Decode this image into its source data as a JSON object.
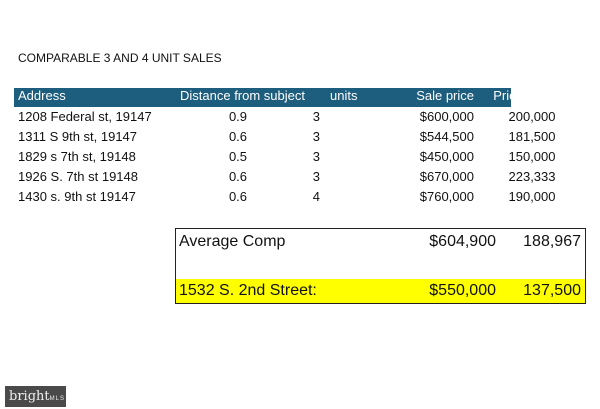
{
  "title": "COMPARABLE 3 AND 4 UNIT SALES",
  "table": {
    "headers": [
      "Address",
      "Distance from subject",
      "units",
      "Sale price",
      "Price per unit"
    ],
    "rows": [
      [
        "1208 Federal st, 19147",
        "0.9",
        "3",
        "$600,000",
        "200,000"
      ],
      [
        "1311 S 9th st, 19147",
        "0.6",
        "3",
        "$544,500",
        "181,500"
      ],
      [
        "1829 s 7th st, 19148",
        "0.5",
        "3",
        "$450,000",
        "150,000"
      ],
      [
        "1926 S. 7th st 19148",
        "0.6",
        "3",
        "$670,000",
        "223,333"
      ],
      [
        "1430 s. 9th st 19147",
        "0.6",
        "4",
        "$760,000",
        "190,000"
      ]
    ]
  },
  "summary": {
    "average": {
      "label": "Average Comp",
      "sale_price": "$604,900",
      "price_per_unit": "188,967"
    },
    "subject": {
      "label": "1532 S. 2nd Street:",
      "sale_price": "$550,000",
      "price_per_unit": "137,500"
    }
  },
  "logo": {
    "text": "bright",
    "suffix": "MLS"
  },
  "colors": {
    "header": "#1d5d7d",
    "highlight": "#ffff00"
  }
}
